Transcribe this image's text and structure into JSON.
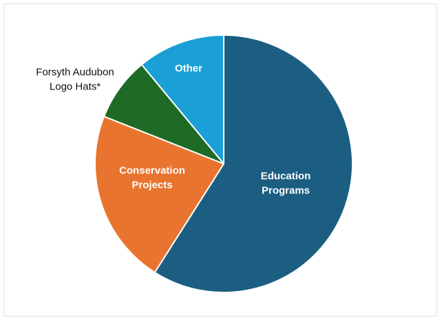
{
  "chart_data": {
    "type": "pie",
    "title": "",
    "slices": [
      {
        "lines": [
          "Education",
          "Programs"
        ],
        "value": 59,
        "color": "#1b5e82",
        "label_color": "#ffffff",
        "label_placement": "inside"
      },
      {
        "lines": [
          "Conservation",
          "Projects"
        ],
        "value": 22,
        "color": "#e8742f",
        "label_color": "#ffffff",
        "label_placement": "inside"
      },
      {
        "lines": [
          "Forsyth Audubon",
          "Logo Hats*"
        ],
        "value": 8,
        "color": "#1e6b26",
        "label_color": "#111111",
        "label_placement": "outside"
      },
      {
        "lines": [
          "Other"
        ],
        "value": 11,
        "color": "#1a9fd6",
        "label_color": "#ffffff",
        "label_placement": "inside"
      }
    ],
    "start": "top",
    "direction": "clockwise",
    "legend": "none"
  }
}
